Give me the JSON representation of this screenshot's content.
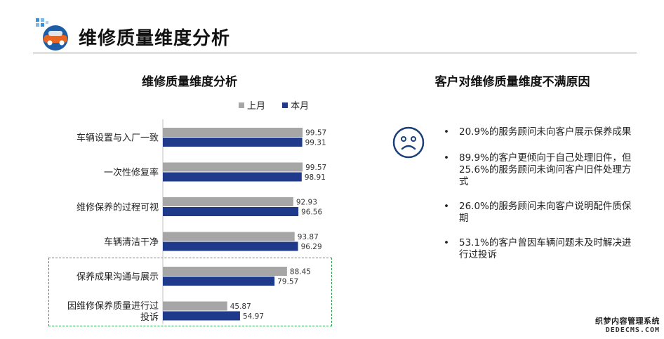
{
  "header": {
    "title": "维修质量维度分析"
  },
  "left_chart": {
    "title": "维修质量维度分析"
  },
  "chart_data": {
    "type": "bar",
    "orientation": "horizontal",
    "title": "维修质量维度分析",
    "categories": [
      "车辆设置与入厂一致",
      "一次性修复率",
      "维修保养的过程可视",
      "车辆清洁干净",
      "保养成果沟通与展示",
      "因维修保养质量进行过投诉"
    ],
    "series": [
      {
        "name": "上月",
        "color": "#a6a6a6",
        "values": [
          99.57,
          99.57,
          92.93,
          93.87,
          88.45,
          45.87
        ]
      },
      {
        "name": "本月",
        "color": "#1f3a8a",
        "values": [
          99.31,
          98.91,
          96.56,
          96.29,
          79.57,
          54.97
        ]
      }
    ],
    "value_labels": {
      "上月": [
        "99.57",
        "99.57",
        "92.93",
        "93.87",
        "88.45",
        "45.87"
      ],
      "本月": [
        "99.31",
        "98.91",
        "96.56",
        "96.29",
        "79.57",
        "54.97"
      ]
    },
    "xlim": [
      0,
      100
    ],
    "legend_position": "top-right",
    "grid": false,
    "highlighted_categories": [
      "保养成果沟通与展示",
      "因维修保养质量进行过投诉"
    ]
  },
  "right_panel": {
    "title": "客户对维修质量维度不满原因",
    "icon": "sad-face-icon",
    "bullet": "•",
    "reasons": [
      {
        "text": "20.9%的服务顾问未向客户展示保养成果"
      },
      {
        "text": "89.9%的客户更倾向于自己处理旧件，但25.6%的服务顾问未询问客户旧件处理方式"
      },
      {
        "text": "26.0%的服务顾问未向客户说明配件质保期"
      },
      {
        "text": "53.1%的客户曾因车辆问题未及时解决进行过投诉"
      }
    ]
  },
  "watermark": {
    "line1": "织梦内容管理系统",
    "line2": "DEDECMS.COM"
  },
  "colors": {
    "accent": "#1f3a8a",
    "previous": "#a6a6a6",
    "highlight_border": "#2ea44f",
    "icon_blue": "#1b5fa8"
  }
}
